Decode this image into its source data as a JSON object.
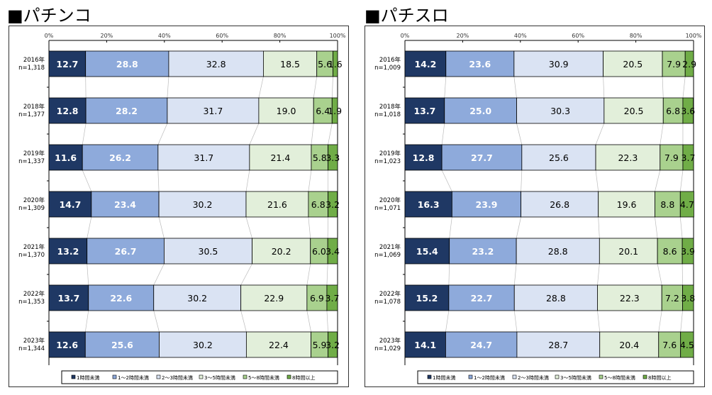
{
  "colors": [
    "#1f3864",
    "#8eaadb",
    "#dae3f3",
    "#e2efda",
    "#a9d18e",
    "#70ad47"
  ],
  "legend": [
    "1時間未満",
    "1～2時間未満",
    "2～3時間未満",
    "3～5時間未満",
    "5～8時間未満",
    "8時間以上"
  ],
  "chart_data": [
    {
      "type": "bar",
      "stacked": "100%",
      "orientation": "horizontal",
      "title": "■パチンコ",
      "xlim": [
        0,
        100
      ],
      "x_ticks": [
        "0%",
        "20%",
        "40%",
        "60%",
        "80%",
        "100%"
      ],
      "categories": [
        {
          "year": "2016年",
          "n": "n=1,318"
        },
        {
          "year": "2018年",
          "n": "n=1,377"
        },
        {
          "year": "2019年",
          "n": "n=1,337"
        },
        {
          "year": "2020年",
          "n": "n=1,309"
        },
        {
          "year": "2021年",
          "n": "n=1,370"
        },
        {
          "year": "2022年",
          "n": "n=1,353"
        },
        {
          "year": "2023年",
          "n": "n=1,344"
        }
      ],
      "values": [
        [
          12.7,
          28.8,
          32.8,
          18.5,
          5.6,
          1.6
        ],
        [
          12.8,
          28.2,
          31.7,
          19.0,
          6.4,
          1.9
        ],
        [
          11.6,
          26.2,
          31.7,
          21.4,
          5.8,
          3.3
        ],
        [
          14.7,
          23.4,
          30.2,
          21.6,
          6.8,
          3.2
        ],
        [
          13.2,
          26.7,
          30.5,
          20.2,
          6.0,
          3.4
        ],
        [
          13.7,
          22.6,
          30.2,
          22.9,
          6.9,
          3.7
        ],
        [
          12.6,
          25.6,
          30.2,
          22.4,
          5.9,
          3.2
        ]
      ],
      "legend_position": "bottom"
    },
    {
      "type": "bar",
      "stacked": "100%",
      "orientation": "horizontal",
      "title": "■パチスロ",
      "xlim": [
        0,
        100
      ],
      "x_ticks": [
        "0%",
        "20%",
        "40%",
        "60%",
        "80%",
        "100%"
      ],
      "categories": [
        {
          "year": "2016年",
          "n": "n=1,009"
        },
        {
          "year": "2018年",
          "n": "n=1,018"
        },
        {
          "year": "2019年",
          "n": "n=1,023"
        },
        {
          "year": "2020年",
          "n": "n=1,071"
        },
        {
          "year": "2021年",
          "n": "n=1,069"
        },
        {
          "year": "2022年",
          "n": "n=1,078"
        },
        {
          "year": "2023年",
          "n": "n=1,029"
        }
      ],
      "values": [
        [
          14.2,
          23.6,
          30.9,
          20.5,
          7.9,
          2.9
        ],
        [
          13.7,
          25.0,
          30.3,
          20.5,
          6.8,
          3.6
        ],
        [
          12.8,
          27.7,
          25.6,
          22.3,
          7.9,
          3.7
        ],
        [
          16.3,
          23.9,
          26.8,
          19.6,
          8.8,
          4.7
        ],
        [
          15.4,
          23.2,
          28.8,
          20.1,
          8.6,
          3.9
        ],
        [
          15.2,
          22.7,
          28.8,
          22.3,
          7.2,
          3.8
        ],
        [
          14.1,
          24.7,
          28.7,
          20.4,
          7.6,
          4.5
        ]
      ],
      "legend_position": "bottom"
    }
  ]
}
